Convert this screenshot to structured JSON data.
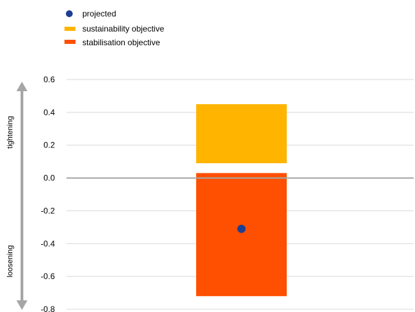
{
  "chart_data": {
    "type": "bar",
    "legend": [
      {
        "label": "projected",
        "marker": "dot",
        "color": "#1c3f94"
      },
      {
        "label": "sustainability objective",
        "marker": "bar",
        "color": "#ffb400"
      },
      {
        "label": "stabilisation objective",
        "marker": "bar",
        "color": "#ff4f00"
      }
    ],
    "legend_position": "top-left",
    "series": [
      {
        "name": "sustainability objective",
        "range": [
          0.09,
          0.45
        ],
        "color": "#ffb400"
      },
      {
        "name": "stabilisation objective",
        "range": [
          -0.72,
          0.03
        ],
        "color": "#ff4f00"
      },
      {
        "name": "projected",
        "value": -0.31,
        "color": "#1c3f94"
      }
    ],
    "ylim": [
      -0.8,
      0.6
    ],
    "y_ticks": [
      "0.6",
      "0.4",
      "0.2",
      "0.0",
      "-0.2",
      "-0.4",
      "-0.6",
      "-0.8"
    ],
    "y_tick_values": [
      0.6,
      0.4,
      0.2,
      0.0,
      -0.2,
      -0.4,
      -0.6,
      -0.8
    ],
    "grid": true,
    "side_labels": {
      "top": "tightening",
      "bottom": "loosening"
    },
    "colors": {
      "grid": "#d9d9d9",
      "zero_line": "#a6a6a6",
      "arrow": "#a6a6a6"
    }
  }
}
